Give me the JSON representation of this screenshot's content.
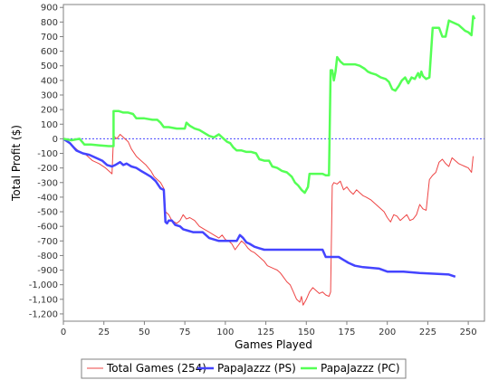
{
  "chart_data": {
    "type": "line",
    "xlabel": "Games Played",
    "ylabel": "Total Profit ($)",
    "xlim": [
      0,
      260
    ],
    "ylim": [
      -1250,
      920
    ],
    "x_ticks": [
      0,
      25,
      50,
      75,
      100,
      125,
      150,
      175,
      200,
      225,
      250
    ],
    "x_tick_labels": [
      "0",
      "25",
      "50",
      "75",
      "100",
      "125",
      "150",
      "175",
      "200",
      "225",
      "250"
    ],
    "y_ticks": [
      900,
      800,
      700,
      600,
      500,
      400,
      300,
      200,
      100,
      0,
      -100,
      -200,
      -300,
      -400,
      -500,
      -600,
      -700,
      -800,
      -900,
      -1000,
      -1100,
      -1200
    ],
    "y_tick_labels": [
      "900",
      "800",
      "700",
      "600",
      "500",
      "400",
      "300",
      "200",
      "100",
      "0",
      "-100",
      "-200",
      "-300",
      "-400",
      "-500",
      "-600",
      "-700",
      "-800",
      "-900",
      "-1,000",
      "-1,100",
      "-1,200"
    ],
    "zero_line": true,
    "grid": false,
    "legend_position": "bottom",
    "series": [
      {
        "name": "Total Games (254)",
        "color": "#ee4444",
        "stroke_width": 1,
        "points": [
          [
            0,
            0
          ],
          [
            3,
            -20
          ],
          [
            6,
            -50
          ],
          [
            10,
            -90
          ],
          [
            14,
            -110
          ],
          [
            18,
            -150
          ],
          [
            22,
            -170
          ],
          [
            26,
            -200
          ],
          [
            30,
            -240
          ],
          [
            31,
            20
          ],
          [
            33,
            0
          ],
          [
            35,
            30
          ],
          [
            37,
            10
          ],
          [
            40,
            -20
          ],
          [
            42,
            -70
          ],
          [
            45,
            -120
          ],
          [
            48,
            -150
          ],
          [
            51,
            -180
          ],
          [
            54,
            -220
          ],
          [
            56,
            -260
          ],
          [
            58,
            -280
          ],
          [
            60,
            -300
          ],
          [
            62,
            -340
          ],
          [
            63,
            -500
          ],
          [
            65,
            -520
          ],
          [
            67,
            -560
          ],
          [
            70,
            -580
          ],
          [
            72,
            -560
          ],
          [
            74,
            -520
          ],
          [
            76,
            -550
          ],
          [
            78,
            -540
          ],
          [
            81,
            -560
          ],
          [
            84,
            -600
          ],
          [
            87,
            -620
          ],
          [
            90,
            -640
          ],
          [
            93,
            -660
          ],
          [
            96,
            -680
          ],
          [
            98,
            -660
          ],
          [
            100,
            -690
          ],
          [
            102,
            -700
          ],
          [
            104,
            -720
          ],
          [
            106,
            -760
          ],
          [
            108,
            -730
          ],
          [
            110,
            -700
          ],
          [
            112,
            -720
          ],
          [
            114,
            -750
          ],
          [
            116,
            -770
          ],
          [
            118,
            -780
          ],
          [
            120,
            -800
          ],
          [
            122,
            -820
          ],
          [
            124,
            -840
          ],
          [
            126,
            -870
          ],
          [
            128,
            -880
          ],
          [
            130,
            -890
          ],
          [
            132,
            -900
          ],
          [
            134,
            -920
          ],
          [
            136,
            -950
          ],
          [
            138,
            -980
          ],
          [
            140,
            -1000
          ],
          [
            142,
            -1050
          ],
          [
            144,
            -1100
          ],
          [
            146,
            -1120
          ],
          [
            147,
            -1080
          ],
          [
            148,
            -1140
          ],
          [
            150,
            -1100
          ],
          [
            152,
            -1050
          ],
          [
            154,
            -1020
          ],
          [
            156,
            -1040
          ],
          [
            158,
            -1060
          ],
          [
            160,
            -1050
          ],
          [
            162,
            -1070
          ],
          [
            164,
            -1080
          ],
          [
            165,
            -1050
          ],
          [
            166,
            -320
          ],
          [
            167,
            -300
          ],
          [
            169,
            -310
          ],
          [
            171,
            -290
          ],
          [
            173,
            -350
          ],
          [
            175,
            -330
          ],
          [
            177,
            -360
          ],
          [
            179,
            -380
          ],
          [
            181,
            -350
          ],
          [
            183,
            -370
          ],
          [
            185,
            -390
          ],
          [
            187,
            -400
          ],
          [
            190,
            -420
          ],
          [
            192,
            -440
          ],
          [
            194,
            -460
          ],
          [
            196,
            -480
          ],
          [
            198,
            -500
          ],
          [
            200,
            -540
          ],
          [
            202,
            -570
          ],
          [
            204,
            -520
          ],
          [
            206,
            -530
          ],
          [
            208,
            -560
          ],
          [
            210,
            -540
          ],
          [
            212,
            -520
          ],
          [
            214,
            -560
          ],
          [
            216,
            -550
          ],
          [
            218,
            -520
          ],
          [
            220,
            -450
          ],
          [
            222,
            -480
          ],
          [
            224,
            -490
          ],
          [
            226,
            -280
          ],
          [
            228,
            -250
          ],
          [
            230,
            -230
          ],
          [
            232,
            -160
          ],
          [
            234,
            -140
          ],
          [
            236,
            -170
          ],
          [
            238,
            -190
          ],
          [
            240,
            -130
          ],
          [
            242,
            -150
          ],
          [
            244,
            -170
          ],
          [
            246,
            -180
          ],
          [
            248,
            -190
          ],
          [
            250,
            -200
          ],
          [
            252,
            -230
          ],
          [
            253,
            -120
          ]
        ]
      },
      {
        "name": "PapaJazzz (PS)",
        "color": "#4444ff",
        "stroke_width": 2.5,
        "points": [
          [
            0,
            0
          ],
          [
            4,
            -30
          ],
          [
            8,
            -80
          ],
          [
            12,
            -100
          ],
          [
            16,
            -110
          ],
          [
            20,
            -130
          ],
          [
            24,
            -150
          ],
          [
            27,
            -180
          ],
          [
            30,
            -190
          ],
          [
            32,
            -180
          ],
          [
            35,
            -160
          ],
          [
            37,
            -180
          ],
          [
            39,
            -170
          ],
          [
            42,
            -190
          ],
          [
            45,
            -200
          ],
          [
            48,
            -220
          ],
          [
            51,
            -240
          ],
          [
            54,
            -260
          ],
          [
            57,
            -290
          ],
          [
            60,
            -340
          ],
          [
            62,
            -350
          ],
          [
            63,
            -570
          ],
          [
            64,
            -580
          ],
          [
            65,
            -560
          ],
          [
            67,
            -560
          ],
          [
            69,
            -590
          ],
          [
            72,
            -600
          ],
          [
            74,
            -620
          ],
          [
            77,
            -630
          ],
          [
            80,
            -640
          ],
          [
            86,
            -640
          ],
          [
            88,
            -660
          ],
          [
            90,
            -680
          ],
          [
            93,
            -690
          ],
          [
            96,
            -700
          ],
          [
            105,
            -700
          ],
          [
            107,
            -700
          ],
          [
            109,
            -660
          ],
          [
            111,
            -680
          ],
          [
            113,
            -710
          ],
          [
            115,
            -720
          ],
          [
            118,
            -740
          ],
          [
            121,
            -750
          ],
          [
            124,
            -760
          ],
          [
            140,
            -760
          ],
          [
            160,
            -760
          ],
          [
            162,
            -810
          ],
          [
            170,
            -810
          ],
          [
            173,
            -830
          ],
          [
            176,
            -850
          ],
          [
            180,
            -870
          ],
          [
            185,
            -880
          ],
          [
            195,
            -890
          ],
          [
            200,
            -910
          ],
          [
            210,
            -910
          ],
          [
            220,
            -920
          ],
          [
            230,
            -925
          ],
          [
            238,
            -930
          ],
          [
            242,
            -945
          ]
        ]
      },
      {
        "name": "PapaJazzz (PC)",
        "color": "#55ff55",
        "stroke_width": 2.5,
        "points": [
          [
            0,
            0
          ],
          [
            5,
            -10
          ],
          [
            10,
            0
          ],
          [
            13,
            -40
          ],
          [
            17,
            -40
          ],
          [
            22,
            -45
          ],
          [
            28,
            -50
          ],
          [
            31,
            -50
          ],
          [
            31,
            190
          ],
          [
            34,
            190
          ],
          [
            37,
            180
          ],
          [
            40,
            180
          ],
          [
            43,
            170
          ],
          [
            45,
            140
          ],
          [
            50,
            140
          ],
          [
            55,
            130
          ],
          [
            58,
            130
          ],
          [
            60,
            110
          ],
          [
            62,
            80
          ],
          [
            65,
            80
          ],
          [
            70,
            70
          ],
          [
            75,
            70
          ],
          [
            76,
            110
          ],
          [
            78,
            90
          ],
          [
            81,
            70
          ],
          [
            84,
            60
          ],
          [
            87,
            40
          ],
          [
            90,
            20
          ],
          [
            93,
            10
          ],
          [
            96,
            30
          ],
          [
            99,
            0
          ],
          [
            101,
            -20
          ],
          [
            103,
            -30
          ],
          [
            105,
            -60
          ],
          [
            107,
            -80
          ],
          [
            110,
            -80
          ],
          [
            113,
            -90
          ],
          [
            116,
            -90
          ],
          [
            119,
            -100
          ],
          [
            121,
            -140
          ],
          [
            124,
            -150
          ],
          [
            127,
            -150
          ],
          [
            129,
            -190
          ],
          [
            132,
            -200
          ],
          [
            135,
            -220
          ],
          [
            138,
            -230
          ],
          [
            141,
            -260
          ],
          [
            143,
            -300
          ],
          [
            145,
            -320
          ],
          [
            147,
            -350
          ],
          [
            149,
            -370
          ],
          [
            151,
            -330
          ],
          [
            152,
            -240
          ],
          [
            155,
            -240
          ],
          [
            160,
            -240
          ],
          [
            162,
            -250
          ],
          [
            164,
            -250
          ],
          [
            165,
            470
          ],
          [
            166,
            470
          ],
          [
            167,
            400
          ],
          [
            168,
            460
          ],
          [
            169,
            560
          ],
          [
            171,
            530
          ],
          [
            173,
            510
          ],
          [
            176,
            510
          ],
          [
            180,
            510
          ],
          [
            183,
            500
          ],
          [
            186,
            480
          ],
          [
            188,
            460
          ],
          [
            190,
            450
          ],
          [
            193,
            440
          ],
          [
            196,
            420
          ],
          [
            199,
            410
          ],
          [
            201,
            390
          ],
          [
            203,
            340
          ],
          [
            205,
            330
          ],
          [
            207,
            360
          ],
          [
            209,
            400
          ],
          [
            211,
            420
          ],
          [
            213,
            380
          ],
          [
            215,
            420
          ],
          [
            217,
            410
          ],
          [
            219,
            450
          ],
          [
            220,
            420
          ],
          [
            221,
            460
          ],
          [
            222,
            430
          ],
          [
            224,
            410
          ],
          [
            226,
            420
          ],
          [
            228,
            760
          ],
          [
            230,
            760
          ],
          [
            232,
            760
          ],
          [
            234,
            700
          ],
          [
            236,
            700
          ],
          [
            238,
            810
          ],
          [
            240,
            800
          ],
          [
            242,
            790
          ],
          [
            244,
            780
          ],
          [
            246,
            760
          ],
          [
            248,
            740
          ],
          [
            250,
            730
          ],
          [
            252,
            710
          ],
          [
            253,
            840
          ],
          [
            254,
            820
          ]
        ]
      }
    ]
  }
}
